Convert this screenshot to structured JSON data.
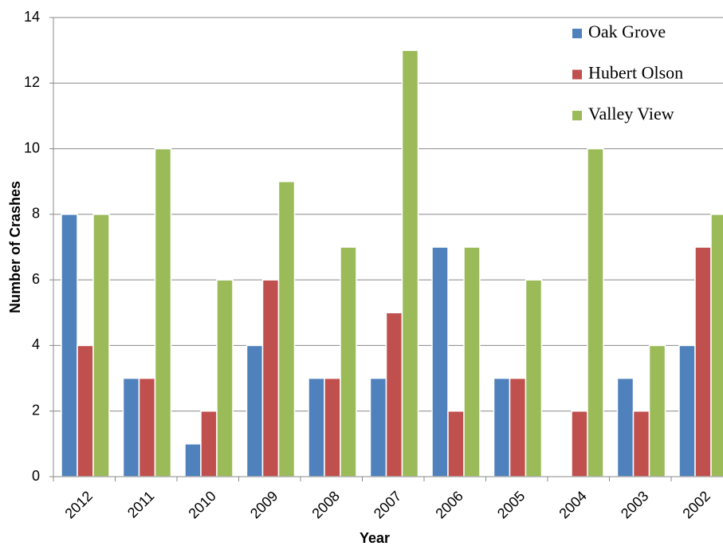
{
  "chart_data": {
    "type": "bar",
    "x_label": "Year",
    "y_label": "Number of Crashes",
    "categories": [
      "2012",
      "2011",
      "2010",
      "2009",
      "2008",
      "2007",
      "2006",
      "2005",
      "2004",
      "2003",
      "2002"
    ],
    "series": [
      {
        "name": "Oak Grove",
        "color": "#4f81bd",
        "values": [
          8,
          3,
          1,
          4,
          3,
          3,
          7,
          3,
          0,
          3,
          4
        ]
      },
      {
        "name": "Hubert Olson",
        "color": "#c0504d",
        "values": [
          4,
          3,
          2,
          6,
          3,
          5,
          2,
          3,
          2,
          2,
          7
        ]
      },
      {
        "name": "Valley View",
        "color": "#9bbb59",
        "values": [
          8,
          10,
          6,
          9,
          7,
          13,
          7,
          6,
          10,
          4,
          8
        ]
      }
    ],
    "ylim": [
      0,
      14
    ],
    "yticks": [
      0,
      2,
      4,
      6,
      8,
      10,
      12,
      14
    ],
    "grid": true,
    "legend": "upper right"
  }
}
